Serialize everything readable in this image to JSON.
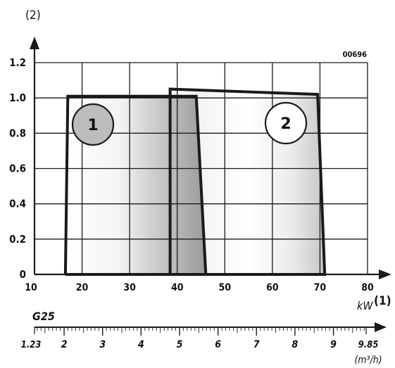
{
  "chart_data": {
    "type": "area",
    "code": "00696",
    "ylabel": "(2)",
    "x_unit": "kW",
    "x_axis_marker": "(1)",
    "x_ticks": [
      "10",
      "20",
      "30",
      "40",
      "50",
      "60",
      "70",
      "80"
    ],
    "y_ticks": [
      "0",
      "0.2",
      "0.4",
      "0.6",
      "0.8",
      "1.0",
      "1.2"
    ],
    "xlim": [
      10,
      80
    ],
    "ylim": [
      0,
      1.2
    ],
    "grid": true,
    "divider_x": 38.5,
    "series": [
      {
        "label": "1",
        "color": "#bdbdbd",
        "x": [
          16.5,
          17,
          44,
          46,
          16.5
        ],
        "y": [
          0,
          1.01,
          1.01,
          0,
          0
        ]
      },
      {
        "label": "2",
        "color": "#ffffff",
        "x": [
          38.5,
          38.5,
          69.5,
          71,
          38.5
        ],
        "y": [
          0,
          1.05,
          1.02,
          0,
          0
        ]
      }
    ],
    "gas_scale": {
      "name": "G25",
      "unit": "(m³/h)",
      "start_label": "1.23",
      "end_label": "9.85",
      "start_value": 1.23,
      "end_value": 9.85,
      "major_labels": [
        "2",
        "3",
        "4",
        "5",
        "6",
        "7",
        "8",
        "9"
      ]
    }
  }
}
